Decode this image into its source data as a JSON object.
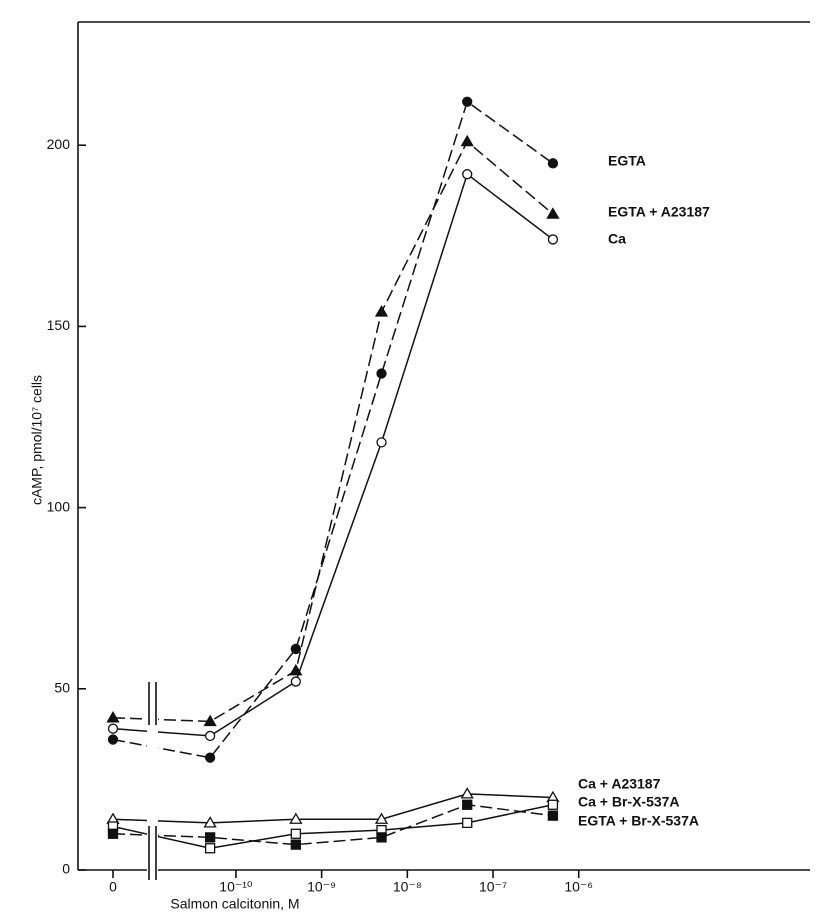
{
  "chart_data": {
    "type": "line",
    "x_label": "Salmon calcitonin, M",
    "y_label": "cAMP, pmol/10⁷ cells",
    "x": [
      0,
      5e-11,
      5e-10,
      5e-09,
      5e-08,
      5e-07
    ],
    "xlim": [
      1.3e-11,
      0.0005
    ],
    "xscale": "log",
    "xticks": [
      0,
      {
        "value": 1e-10,
        "label": "10⁻¹⁰"
      },
      {
        "value": 1e-09,
        "label": "10⁻⁹"
      },
      {
        "value": 1e-08,
        "label": "10⁻⁸"
      },
      {
        "value": 1e-07,
        "label": "10⁻⁷"
      },
      {
        "value": 1e-06,
        "label": "10⁻⁶"
      }
    ],
    "ylim": [
      0,
      234
    ],
    "yticks": [
      0,
      50,
      100,
      150,
      200
    ],
    "grid": false,
    "series": [
      {
        "name": "EGTA",
        "color": "#111111",
        "marker": "circle",
        "filled": true,
        "dashed": true,
        "values": [
          36,
          31,
          61,
          137,
          212,
          195
        ]
      },
      {
        "name": "EGTA + A23187",
        "color": "#111111",
        "marker": "triangle",
        "filled": true,
        "dashed": true,
        "values": [
          42,
          41,
          55,
          154,
          201,
          181
        ]
      },
      {
        "name": "Ca",
        "color": "#111111",
        "marker": "circle",
        "filled": false,
        "dashed": false,
        "values": [
          39,
          37,
          52,
          118,
          192,
          174
        ]
      },
      {
        "name": "Ca + A23187",
        "color": "#111111",
        "marker": "triangle",
        "filled": false,
        "dashed": false,
        "values": [
          14,
          13,
          14,
          14,
          21,
          20
        ]
      },
      {
        "name": "Ca + Br-X-537A",
        "color": "#111111",
        "marker": "square",
        "filled": false,
        "dashed": false,
        "values": [
          12,
          6,
          10,
          11,
          13,
          18
        ]
      },
      {
        "name": "EGTA + Br-X-537A",
        "color": "#111111",
        "marker": "square",
        "filled": true,
        "dashed": true,
        "values": [
          10,
          9,
          7,
          9,
          18,
          15
        ]
      }
    ]
  }
}
